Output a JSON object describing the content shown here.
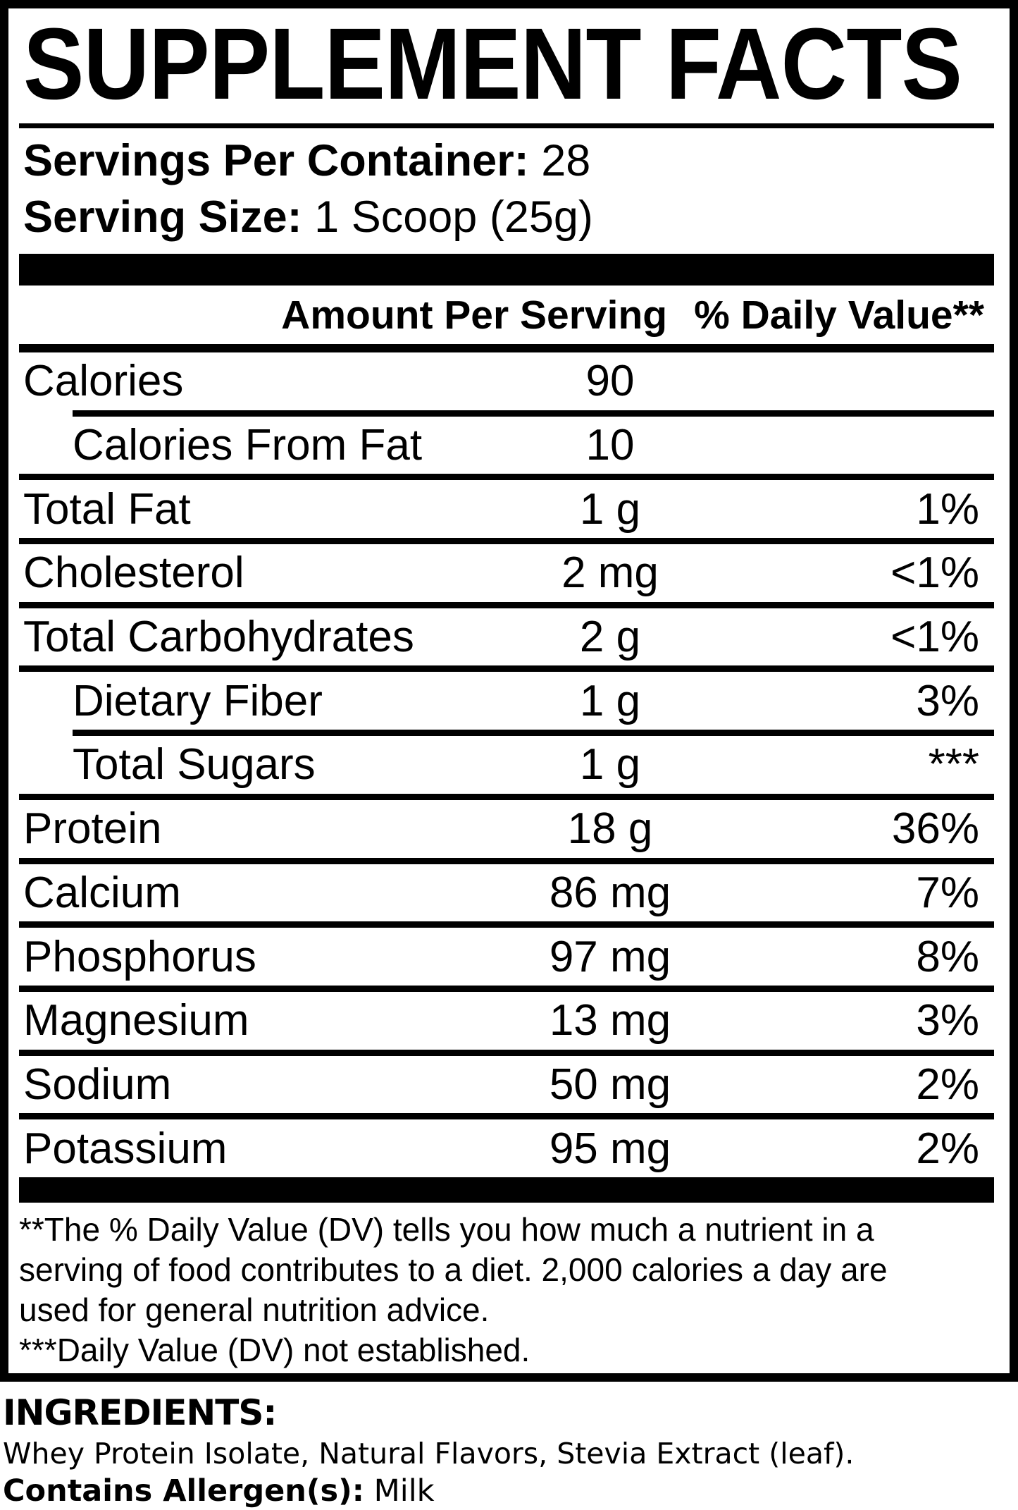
{
  "label": {
    "title": "SUPPLEMENT FACTS",
    "servings_per_container": {
      "label": "Servings Per Container:",
      "value": "28"
    },
    "serving_size": {
      "label": "Serving Size:",
      "value": "1 Scoop (25g)"
    },
    "columns": {
      "amount": "Amount Per Serving",
      "dv": "% Daily Value**"
    },
    "rows": [
      {
        "name": "Calories",
        "amount": "90",
        "dv": "",
        "indent": false,
        "sep": "indent"
      },
      {
        "name": "Calories From Fat",
        "amount": "10",
        "dv": "",
        "indent": true,
        "sep": "full"
      },
      {
        "name": "Total Fat",
        "amount": "1 g",
        "dv": "1%",
        "indent": false,
        "sep": "full"
      },
      {
        "name": "Cholesterol",
        "amount": "2 mg",
        "dv": "<1%",
        "indent": false,
        "sep": "full"
      },
      {
        "name": "Total Carbohydrates",
        "amount": "2 g",
        "dv": "<1%",
        "indent": false,
        "sep": "full"
      },
      {
        "name": "Dietary Fiber",
        "amount": "1 g",
        "dv": "3%",
        "indent": true,
        "sep": "indent"
      },
      {
        "name": "Total Sugars",
        "amount": "1 g",
        "dv": "***",
        "indent": true,
        "sep": "full"
      },
      {
        "name": "Protein",
        "amount": "18 g",
        "dv": "36%",
        "indent": false,
        "sep": "full"
      },
      {
        "name": "Calcium",
        "amount": "86 mg",
        "dv": "7%",
        "indent": false,
        "sep": "full"
      },
      {
        "name": "Phosphorus",
        "amount": "97 mg",
        "dv": "8%",
        "indent": false,
        "sep": "full"
      },
      {
        "name": "Magnesium",
        "amount": "13 mg",
        "dv": "3%",
        "indent": false,
        "sep": "full"
      },
      {
        "name": "Sodium",
        "amount": "50 mg",
        "dv": "2%",
        "indent": false,
        "sep": "full"
      },
      {
        "name": "Potassium",
        "amount": "95 mg",
        "dv": "2%",
        "indent": false,
        "sep": "none"
      }
    ],
    "footnote_lines": [
      "**The % Daily Value (DV) tells you how much a nutrient in a",
      "serving of food contributes to a diet. 2,000 calories a day are",
      "used for general nutrition advice.",
      "***Daily Value (DV) not established."
    ]
  },
  "ingredients": {
    "heading": "INGREDIENTS:",
    "list": "Whey Protein Isolate, Natural Flavors, Stevia Extract (leaf).",
    "allergen_label": "Contains Allergen(s):",
    "allergen_value": "Milk"
  },
  "colors": {
    "ink": "#000000",
    "paper": "#ffffff"
  }
}
